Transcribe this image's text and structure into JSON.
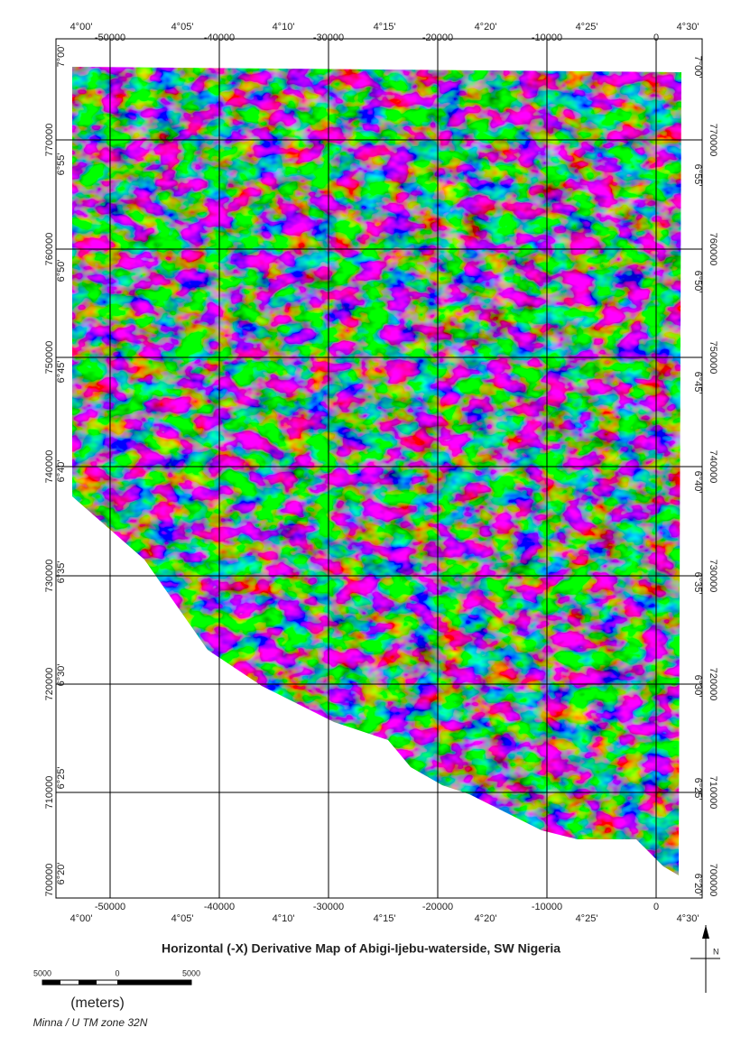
{
  "map": {
    "title": "Horizontal (-X) Derivative Map of Abigi-Ijebu-waterside, SW Nigeria",
    "longitudes": [
      "4°00'",
      "4°05'",
      "4°10'",
      "4°15'",
      "4°20'",
      "4°25'",
      "4°30'"
    ],
    "latitudes": [
      "7°00'",
      "6°55'",
      "6°50'",
      "6°45'",
      "6°40'",
      "6°35'",
      "6°30'",
      "6°25'",
      "6°20'"
    ],
    "eastings": [
      "-50000",
      "-40000",
      "-30000",
      "-20000",
      "-10000",
      "0"
    ],
    "northings": [
      "770000",
      "760000",
      "750000",
      "740000",
      "730000",
      "720000",
      "710000",
      "700000"
    ],
    "scale_bar": {
      "labels": [
        "5000",
        "0",
        "5000"
      ],
      "unit": "(meters)"
    },
    "projection": "Minna / U TM zone 32N",
    "north_label": "N"
  }
}
